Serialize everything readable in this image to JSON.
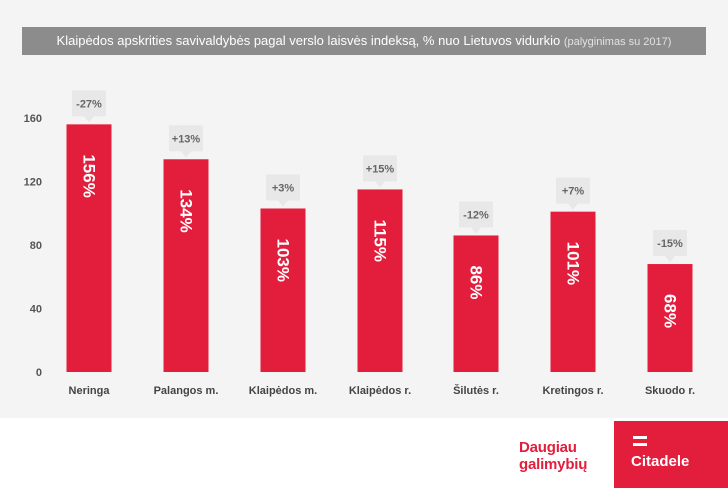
{
  "title": {
    "main": "Klaipėdos apskrities savivaldybės pagal verslo laisvės indeksą, % nuo Lietuvos vidurkio",
    "sub": "(palyginimas su 2017)"
  },
  "colors": {
    "bar": "#e31d3c",
    "callout_bg": "#e8e8e8",
    "callout_text": "#666666",
    "title_bg": "#8c8c8c",
    "brand": "#e31d3c"
  },
  "chart_data": {
    "type": "bar",
    "categories": [
      "Neringa",
      "Palangos m.",
      "Klaipėdos m.",
      "Klaipėdos r.",
      "Šilutės r.",
      "Kretingos r.",
      "Skuodo r."
    ],
    "values": [
      156,
      134,
      103,
      115,
      86,
      101,
      68
    ],
    "value_labels": [
      "156%",
      "134%",
      "103%",
      "115%",
      "86%",
      "101%",
      "68%"
    ],
    "change_labels": [
      "-27%",
      "+13%",
      "+3%",
      "+15%",
      "-12%",
      "+7%",
      "-15%"
    ],
    "ylim": [
      0,
      160
    ],
    "yticks": [
      0,
      40,
      80,
      120,
      160
    ],
    "grid": false,
    "xlabel": "",
    "ylabel": ""
  },
  "footer": {
    "slogan_line1": "Daugiau",
    "slogan_line2": "galimybių",
    "logo_text": "Citadele"
  }
}
